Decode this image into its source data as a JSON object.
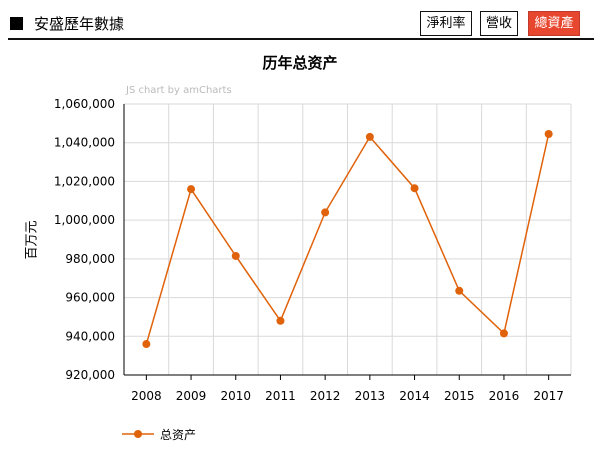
{
  "header": {
    "title": "安盛歷年數據",
    "tabs": [
      {
        "label": "淨利率",
        "active": false
      },
      {
        "label": "營收",
        "active": false
      },
      {
        "label": "總資產",
        "active": true
      }
    ]
  },
  "chart_data": {
    "type": "line",
    "title": "历年总资产",
    "watermark": "JS chart by amCharts",
    "xlabel": "",
    "ylabel": "百万元",
    "categories": [
      "2008",
      "2009",
      "2010",
      "2011",
      "2012",
      "2013",
      "2014",
      "2015",
      "2016",
      "2017"
    ],
    "series": [
      {
        "name": "总资产",
        "color": "#e0620a",
        "values": [
          936000,
          1016000,
          981500,
          948000,
          1004000,
          1043000,
          1016500,
          963500,
          941500,
          1044500
        ]
      }
    ],
    "ylim": [
      920000,
      1060000
    ],
    "yticks": [
      920000,
      940000,
      960000,
      980000,
      1000000,
      1020000,
      1040000,
      1060000
    ],
    "grid": true,
    "legend_position": "bottom-left"
  }
}
